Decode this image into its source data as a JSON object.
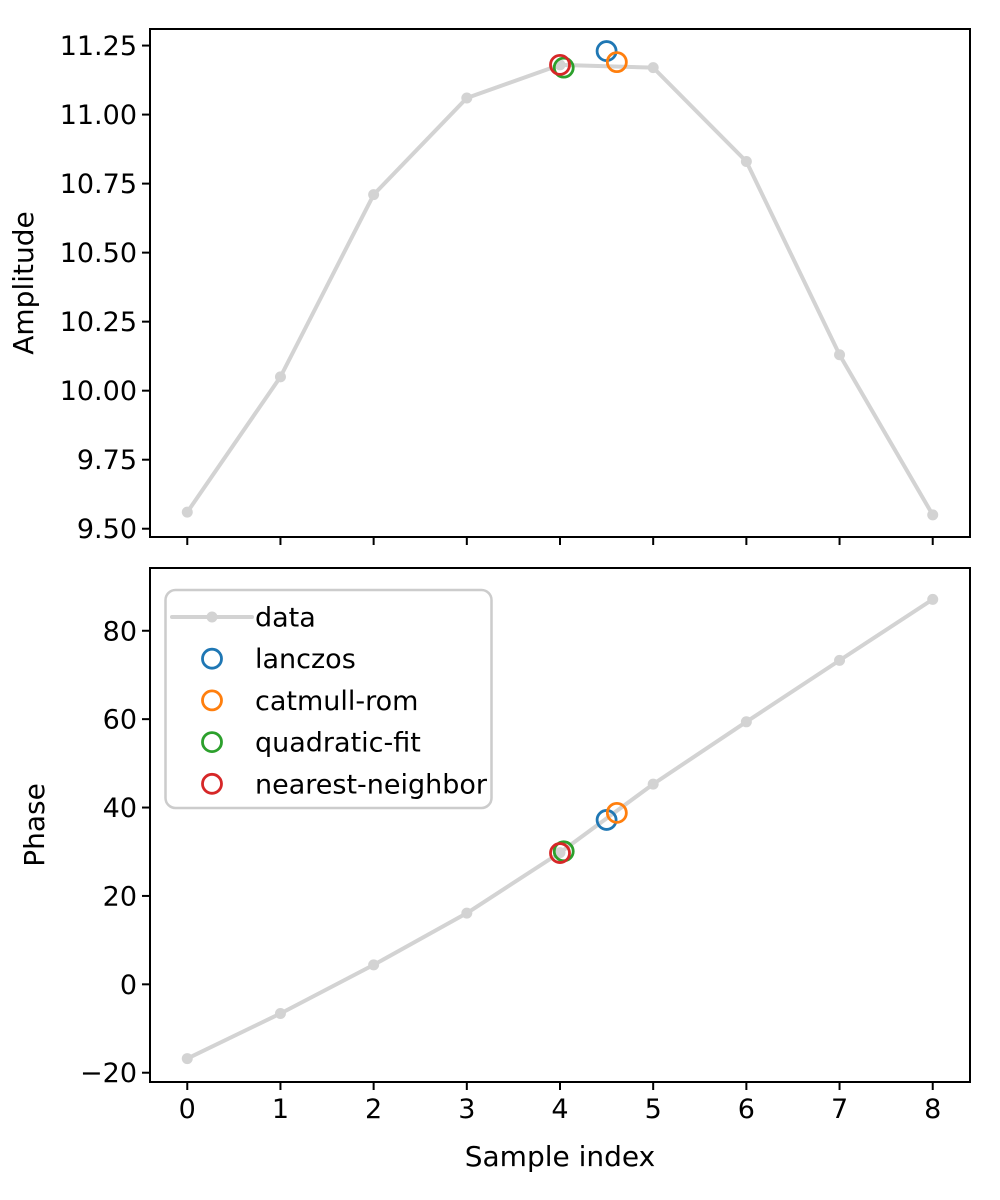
{
  "figure": {
    "background": "#ffffff",
    "xlabel": "Sample index"
  },
  "chart_data": [
    {
      "type": "line",
      "panel": "top",
      "title": "",
      "xlabel": "",
      "ylabel": "Amplitude",
      "x": [
        0,
        1,
        2,
        3,
        4,
        5,
        6,
        7,
        8
      ],
      "series": [
        {
          "name": "data",
          "color": "#d3d3d3",
          "values": [
            9.56,
            10.05,
            10.71,
            11.06,
            11.18,
            11.17,
            10.83,
            10.13,
            9.55
          ]
        }
      ],
      "scatter": [
        {
          "name": "lanczos",
          "color": "#1f77b4",
          "x": 4.5,
          "y": 11.23
        },
        {
          "name": "catmull-rom",
          "color": "#ff7f0e",
          "x": 4.61,
          "y": 11.19
        },
        {
          "name": "quadratic-fit",
          "color": "#2ca02c",
          "x": 4.04,
          "y": 11.17
        },
        {
          "name": "nearest-neighbor",
          "color": "#d62728",
          "x": 4.0,
          "y": 11.18
        }
      ],
      "xlim": [
        -0.4,
        8.4
      ],
      "ylim": [
        9.47,
        11.31
      ],
      "xticks": [
        0,
        1,
        2,
        3,
        4,
        5,
        6,
        7,
        8
      ],
      "xtick_labels": null,
      "yticks": [
        9.5,
        9.75,
        10.0,
        10.25,
        10.5,
        10.75,
        11.0,
        11.25
      ],
      "ytick_labels": [
        "9.50",
        "9.75",
        "10.00",
        "10.25",
        "10.50",
        "10.75",
        "11.00",
        "11.25"
      ],
      "grid": false,
      "legend": null
    },
    {
      "type": "line",
      "panel": "bottom",
      "title": "",
      "xlabel": "Sample index",
      "ylabel": "Phase",
      "x": [
        0,
        1,
        2,
        3,
        4,
        5,
        6,
        7,
        8
      ],
      "series": [
        {
          "name": "data",
          "color": "#d3d3d3",
          "values": [
            -16.8,
            -6.6,
            4.4,
            16.1,
            29.8,
            45.3,
            59.4,
            73.3,
            87.1
          ]
        }
      ],
      "scatter": [
        {
          "name": "lanczos",
          "color": "#1f77b4",
          "x": 4.5,
          "y": 37.2
        },
        {
          "name": "catmull-rom",
          "color": "#ff7f0e",
          "x": 4.61,
          "y": 38.8
        },
        {
          "name": "quadratic-fit",
          "color": "#2ca02c",
          "x": 4.04,
          "y": 30.1
        },
        {
          "name": "nearest-neighbor",
          "color": "#d62728",
          "x": 4.0,
          "y": 29.7
        }
      ],
      "xlim": [
        -0.4,
        8.4
      ],
      "ylim": [
        -22.1,
        94.2
      ],
      "xticks": [
        0,
        1,
        2,
        3,
        4,
        5,
        6,
        7,
        8
      ],
      "xtick_labels": [
        "0",
        "1",
        "2",
        "3",
        "4",
        "5",
        "6",
        "7",
        "8"
      ],
      "yticks": [
        -20,
        0,
        20,
        40,
        60,
        80
      ],
      "ytick_labels": [
        "−20",
        "0",
        "20",
        "40",
        "60",
        "80"
      ],
      "grid": false,
      "legend": {
        "position": "upper left",
        "entries": [
          {
            "label": "data",
            "marker": "line-dot",
            "color": "#d3d3d3"
          },
          {
            "label": "lanczos",
            "marker": "circle-open",
            "color": "#1f77b4"
          },
          {
            "label": "catmull-rom",
            "marker": "circle-open",
            "color": "#ff7f0e"
          },
          {
            "label": "quadratic-fit",
            "marker": "circle-open",
            "color": "#2ca02c"
          },
          {
            "label": "nearest-neighbor",
            "marker": "circle-open",
            "color": "#d62728"
          }
        ]
      }
    }
  ]
}
